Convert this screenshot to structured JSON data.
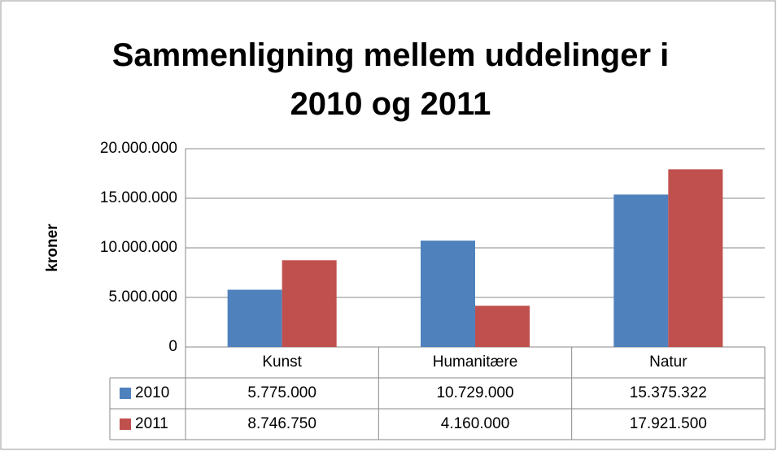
{
  "chart_data": {
    "type": "bar",
    "title": "Sammenligning mellem uddelinger i 2010 og 2011",
    "y_label": "kroner",
    "categories": [
      "Kunst",
      "Humanitære",
      "Natur"
    ],
    "series": [
      {
        "name": "2010",
        "color": "#4f81bd",
        "values": [
          5775000,
          10729000,
          15375322
        ],
        "value_labels": [
          "5.775.000",
          "10.729.000",
          "15.375.322"
        ]
      },
      {
        "name": "2011",
        "color": "#c0504d",
        "values": [
          8746750,
          4160000,
          17921500
        ],
        "value_labels": [
          "8.746.750",
          "4.160.000",
          "17.921.500"
        ]
      }
    ],
    "ylim": [
      0,
      20000000
    ],
    "yticks": [
      0,
      {
        "value": 5000000,
        "label": "5.000.000"
      },
      {
        "value": 10000000,
        "label": "10.000.000"
      },
      {
        "value": 15000000,
        "label": "15.000.000"
      },
      {
        "value": 20000000,
        "label": "20.000.000"
      }
    ],
    "grid": true
  }
}
